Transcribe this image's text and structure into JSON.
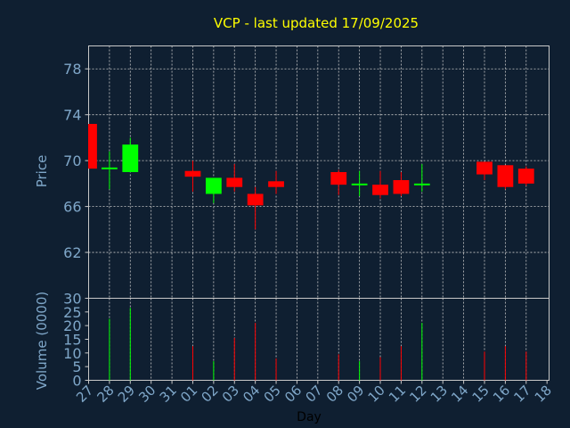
{
  "chart_data": {
    "type": "candlestick",
    "title": "VCP - last updated 17/09/2025",
    "xlabel": "Day",
    "price_panel": {
      "ylabel": "Price",
      "ylim": [
        58,
        80
      ],
      "yticks": [
        62,
        66,
        70,
        74,
        78
      ],
      "grid": true
    },
    "volume_panel": {
      "ylabel": "Volume (0000)",
      "ylim": [
        0,
        30
      ],
      "yticks": [
        0,
        5,
        10,
        15,
        20,
        25,
        30
      ]
    },
    "x_ticks": [
      "27",
      "28",
      "29",
      "30",
      "31",
      "01",
      "02",
      "03",
      "04",
      "05",
      "06",
      "07",
      "08",
      "09",
      "10",
      "11",
      "12",
      "13",
      "14",
      "15",
      "16",
      "17",
      "18"
    ],
    "candles": [
      {
        "day": "27",
        "open": 73.2,
        "high": 73.2,
        "low": 69.3,
        "close": 69.3,
        "volume": 0
      },
      {
        "day": "28",
        "open": 69.3,
        "high": 70.8,
        "low": 67.5,
        "close": 69.4,
        "volume": 22.5
      },
      {
        "day": "29",
        "open": 69.0,
        "high": 72.0,
        "low": 69.0,
        "close": 71.4,
        "volume": 26.5
      },
      {
        "day": "01",
        "open": 69.1,
        "high": 70.0,
        "low": 67.3,
        "close": 68.6,
        "volume": 12.5
      },
      {
        "day": "02",
        "open": 67.1,
        "high": 68.5,
        "low": 66.3,
        "close": 68.5,
        "volume": 7.0
      },
      {
        "day": "03",
        "open": 68.5,
        "high": 69.7,
        "low": 67.3,
        "close": 67.7,
        "volume": 15.5
      },
      {
        "day": "04",
        "open": 67.1,
        "high": 67.7,
        "low": 64.0,
        "close": 66.1,
        "volume": 21.0
      },
      {
        "day": "05",
        "open": 68.2,
        "high": 69.1,
        "low": 67.1,
        "close": 67.7,
        "volume": 8.0
      },
      {
        "day": "08",
        "open": 69.0,
        "high": 69.2,
        "low": 67.0,
        "close": 67.9,
        "volume": 9.5
      },
      {
        "day": "09",
        "open": 67.9,
        "high": 69.1,
        "low": 66.9,
        "close": 68.0,
        "volume": 7.0
      },
      {
        "day": "10",
        "open": 67.9,
        "high": 69.1,
        "low": 66.7,
        "close": 67.0,
        "volume": 8.5
      },
      {
        "day": "11",
        "open": 68.3,
        "high": 69.0,
        "low": 66.9,
        "close": 67.1,
        "volume": 12.5
      },
      {
        "day": "12",
        "open": 67.9,
        "high": 69.7,
        "low": 67.3,
        "close": 68.0,
        "volume": 21.0
      },
      {
        "day": "15",
        "open": 69.9,
        "high": 69.9,
        "low": 68.3,
        "close": 68.8,
        "volume": 10.5
      },
      {
        "day": "16",
        "open": 69.6,
        "high": 69.6,
        "low": 67.5,
        "close": 67.7,
        "volume": 12.5
      },
      {
        "day": "17",
        "open": 69.3,
        "high": 69.5,
        "low": 67.8,
        "close": 68.0,
        "volume": 10.5
      }
    ],
    "colors": {
      "background": "#0f1f31",
      "axis": "#c8c8c8",
      "grid": "#c8c8c8",
      "title": "#ffff00",
      "labels": "#7fa7c9",
      "up": "#00ff00",
      "down": "#ff0000"
    }
  }
}
